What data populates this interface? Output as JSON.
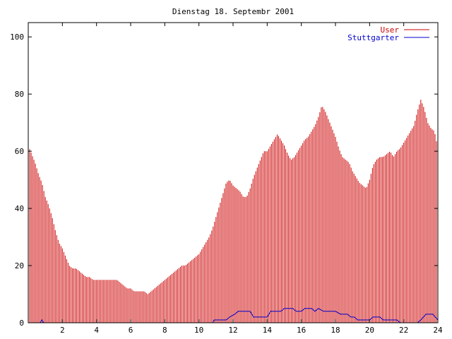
{
  "chart_data": {
    "type": "bar",
    "title": "Dienstag 18. Septembr 2001",
    "xlabel": "",
    "ylabel": "",
    "xlim": [
      0,
      24
    ],
    "ylim": [
      0,
      105
    ],
    "xticks": [
      2,
      4,
      6,
      8,
      10,
      12,
      14,
      16,
      18,
      20,
      22,
      24
    ],
    "yticks": [
      0,
      20,
      40,
      60,
      80,
      100
    ],
    "legend_position": "top-right",
    "grid": false,
    "series": [
      {
        "name": "User",
        "color": "#cc0000",
        "style": "impulses",
        "points": [
          [
            0.0,
            62
          ],
          [
            0.2,
            59
          ],
          [
            0.4,
            56
          ],
          [
            0.6,
            52
          ],
          [
            0.8,
            49
          ],
          [
            1.0,
            44
          ],
          [
            1.2,
            41
          ],
          [
            1.4,
            37
          ],
          [
            1.6,
            32
          ],
          [
            1.8,
            28
          ],
          [
            2.0,
            26
          ],
          [
            2.2,
            23
          ],
          [
            2.4,
            20
          ],
          [
            2.6,
            19
          ],
          [
            2.8,
            19
          ],
          [
            3.0,
            18
          ],
          [
            3.2,
            17
          ],
          [
            3.4,
            16
          ],
          [
            3.6,
            16
          ],
          [
            3.8,
            15
          ],
          [
            4.0,
            15
          ],
          [
            4.2,
            15
          ],
          [
            4.4,
            15
          ],
          [
            4.6,
            15
          ],
          [
            4.8,
            15
          ],
          [
            5.0,
            15
          ],
          [
            5.2,
            15
          ],
          [
            5.4,
            14
          ],
          [
            5.6,
            13
          ],
          [
            5.8,
            12
          ],
          [
            6.0,
            12
          ],
          [
            6.2,
            11
          ],
          [
            6.4,
            11
          ],
          [
            6.6,
            11
          ],
          [
            6.8,
            11
          ],
          [
            7.0,
            10
          ],
          [
            7.2,
            11
          ],
          [
            7.4,
            12
          ],
          [
            7.6,
            13
          ],
          [
            7.8,
            14
          ],
          [
            8.0,
            15
          ],
          [
            8.2,
            16
          ],
          [
            8.4,
            17
          ],
          [
            8.6,
            18
          ],
          [
            8.8,
            19
          ],
          [
            9.0,
            20
          ],
          [
            9.2,
            20
          ],
          [
            9.4,
            21
          ],
          [
            9.6,
            22
          ],
          [
            9.8,
            23
          ],
          [
            10.0,
            24
          ],
          [
            10.2,
            26
          ],
          [
            10.4,
            28
          ],
          [
            10.6,
            30
          ],
          [
            10.8,
            33
          ],
          [
            11.0,
            37
          ],
          [
            11.2,
            41
          ],
          [
            11.4,
            45
          ],
          [
            11.6,
            49
          ],
          [
            11.8,
            50
          ],
          [
            12.0,
            48
          ],
          [
            12.2,
            47
          ],
          [
            12.4,
            46
          ],
          [
            12.6,
            44
          ],
          [
            12.8,
            44
          ],
          [
            13.0,
            47
          ],
          [
            13.2,
            51
          ],
          [
            13.4,
            54
          ],
          [
            13.6,
            57
          ],
          [
            13.8,
            60
          ],
          [
            14.0,
            60
          ],
          [
            14.2,
            62
          ],
          [
            14.4,
            64
          ],
          [
            14.6,
            66
          ],
          [
            14.8,
            64
          ],
          [
            15.0,
            62
          ],
          [
            15.2,
            59
          ],
          [
            15.4,
            57
          ],
          [
            15.6,
            58
          ],
          [
            15.8,
            60
          ],
          [
            16.0,
            62
          ],
          [
            16.2,
            64
          ],
          [
            16.4,
            65
          ],
          [
            16.6,
            67
          ],
          [
            16.8,
            69
          ],
          [
            17.0,
            72
          ],
          [
            17.2,
            76
          ],
          [
            17.4,
            74
          ],
          [
            17.6,
            71
          ],
          [
            17.8,
            68
          ],
          [
            18.0,
            65
          ],
          [
            18.2,
            61
          ],
          [
            18.4,
            58
          ],
          [
            18.6,
            57
          ],
          [
            18.8,
            56
          ],
          [
            19.0,
            53
          ],
          [
            19.2,
            51
          ],
          [
            19.4,
            49
          ],
          [
            19.6,
            48
          ],
          [
            19.8,
            47
          ],
          [
            20.0,
            50
          ],
          [
            20.2,
            55
          ],
          [
            20.4,
            57
          ],
          [
            20.6,
            58
          ],
          [
            20.8,
            58
          ],
          [
            21.0,
            59
          ],
          [
            21.2,
            60
          ],
          [
            21.4,
            58
          ],
          [
            21.6,
            60
          ],
          [
            21.8,
            61
          ],
          [
            22.0,
            63
          ],
          [
            22.2,
            65
          ],
          [
            22.4,
            67
          ],
          [
            22.6,
            69
          ],
          [
            22.8,
            74
          ],
          [
            23.0,
            78
          ],
          [
            23.2,
            75
          ],
          [
            23.4,
            70
          ],
          [
            23.6,
            68
          ],
          [
            23.8,
            67
          ],
          [
            24.0,
            61
          ]
        ]
      },
      {
        "name": "Stuttgarter",
        "color": "#0000cc",
        "style": "lines",
        "points": [
          [
            0.0,
            0
          ],
          [
            0.7,
            0
          ],
          [
            0.8,
            1
          ],
          [
            0.9,
            0
          ],
          [
            10.8,
            0
          ],
          [
            10.9,
            1
          ],
          [
            11.6,
            1
          ],
          [
            11.8,
            2
          ],
          [
            12.1,
            3
          ],
          [
            12.3,
            4
          ],
          [
            13.0,
            4
          ],
          [
            13.2,
            2
          ],
          [
            13.5,
            2
          ],
          [
            14.0,
            2
          ],
          [
            14.2,
            4
          ],
          [
            14.8,
            4
          ],
          [
            15.0,
            5
          ],
          [
            15.5,
            5
          ],
          [
            15.7,
            4
          ],
          [
            16.0,
            4
          ],
          [
            16.2,
            5
          ],
          [
            16.6,
            5
          ],
          [
            16.8,
            4
          ],
          [
            17.0,
            5
          ],
          [
            17.3,
            4
          ],
          [
            18.0,
            4
          ],
          [
            18.3,
            3
          ],
          [
            18.7,
            3
          ],
          [
            18.9,
            2
          ],
          [
            19.1,
            2
          ],
          [
            19.3,
            1
          ],
          [
            20.0,
            1
          ],
          [
            20.2,
            2
          ],
          [
            20.6,
            2
          ],
          [
            20.8,
            1
          ],
          [
            21.6,
            1
          ],
          [
            21.8,
            0
          ],
          [
            22.8,
            0
          ],
          [
            23.0,
            1
          ],
          [
            23.3,
            3
          ],
          [
            23.7,
            3
          ],
          [
            24.0,
            1
          ]
        ]
      }
    ]
  }
}
